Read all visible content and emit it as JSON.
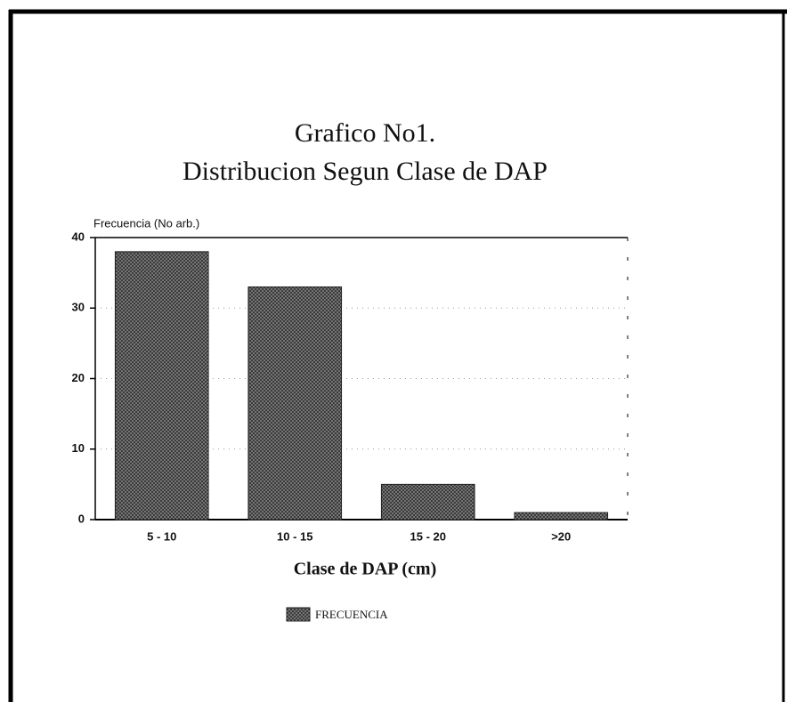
{
  "chart_data": {
    "type": "bar",
    "title": "Grafico No1.",
    "subtitle": "Distribucion Segun Clase de DAP",
    "y_label": "Frecuencia (No arb.)",
    "x_label": "Clase de DAP (cm)",
    "categories": [
      "5 - 10",
      "10 - 15",
      "15 - 20",
      ">20"
    ],
    "series": [
      {
        "name": "FRECUENCIA",
        "color": "#3a3a3a",
        "values": [
          38,
          33,
          5,
          1
        ]
      }
    ],
    "ylim": [
      0,
      40
    ],
    "yticks": [
      0,
      10,
      20,
      30,
      40
    ],
    "grid": true,
    "legend": "bottom"
  }
}
